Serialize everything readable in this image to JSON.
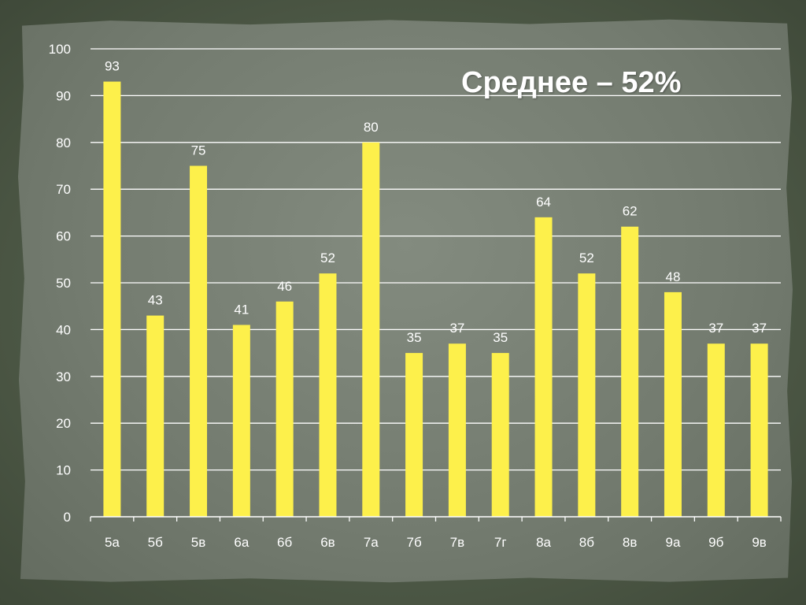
{
  "chart_data": {
    "type": "bar",
    "categories": [
      "5а",
      "5б",
      "5в",
      "6а",
      "6б",
      "6в",
      "7а",
      "7б",
      "7в",
      "7г",
      "8а",
      "8б",
      "8в",
      "9а",
      "9б",
      "9в"
    ],
    "values": [
      93,
      43,
      75,
      41,
      46,
      52,
      80,
      35,
      37,
      35,
      64,
      52,
      62,
      48,
      37,
      37
    ],
    "data_labels": [
      "93",
      "43",
      "75",
      "41",
      "46",
      "52",
      "80",
      "35",
      "37",
      "35",
      "64",
      "52",
      "62",
      "48",
      "37",
      "37"
    ],
    "annotation": "Среднее – 52%",
    "title": "",
    "xlabel": "",
    "ylabel": "",
    "ylim": [
      0,
      100
    ],
    "yticks": [
      "0",
      "10",
      "20",
      "30",
      "40",
      "50",
      "60",
      "70",
      "80",
      "90",
      "100"
    ],
    "grid": true,
    "legend": "none",
    "colors": {
      "bar": "#fdf04b",
      "grid": "#ffffff",
      "text": "#ffffff",
      "background": "#7b8377"
    }
  }
}
